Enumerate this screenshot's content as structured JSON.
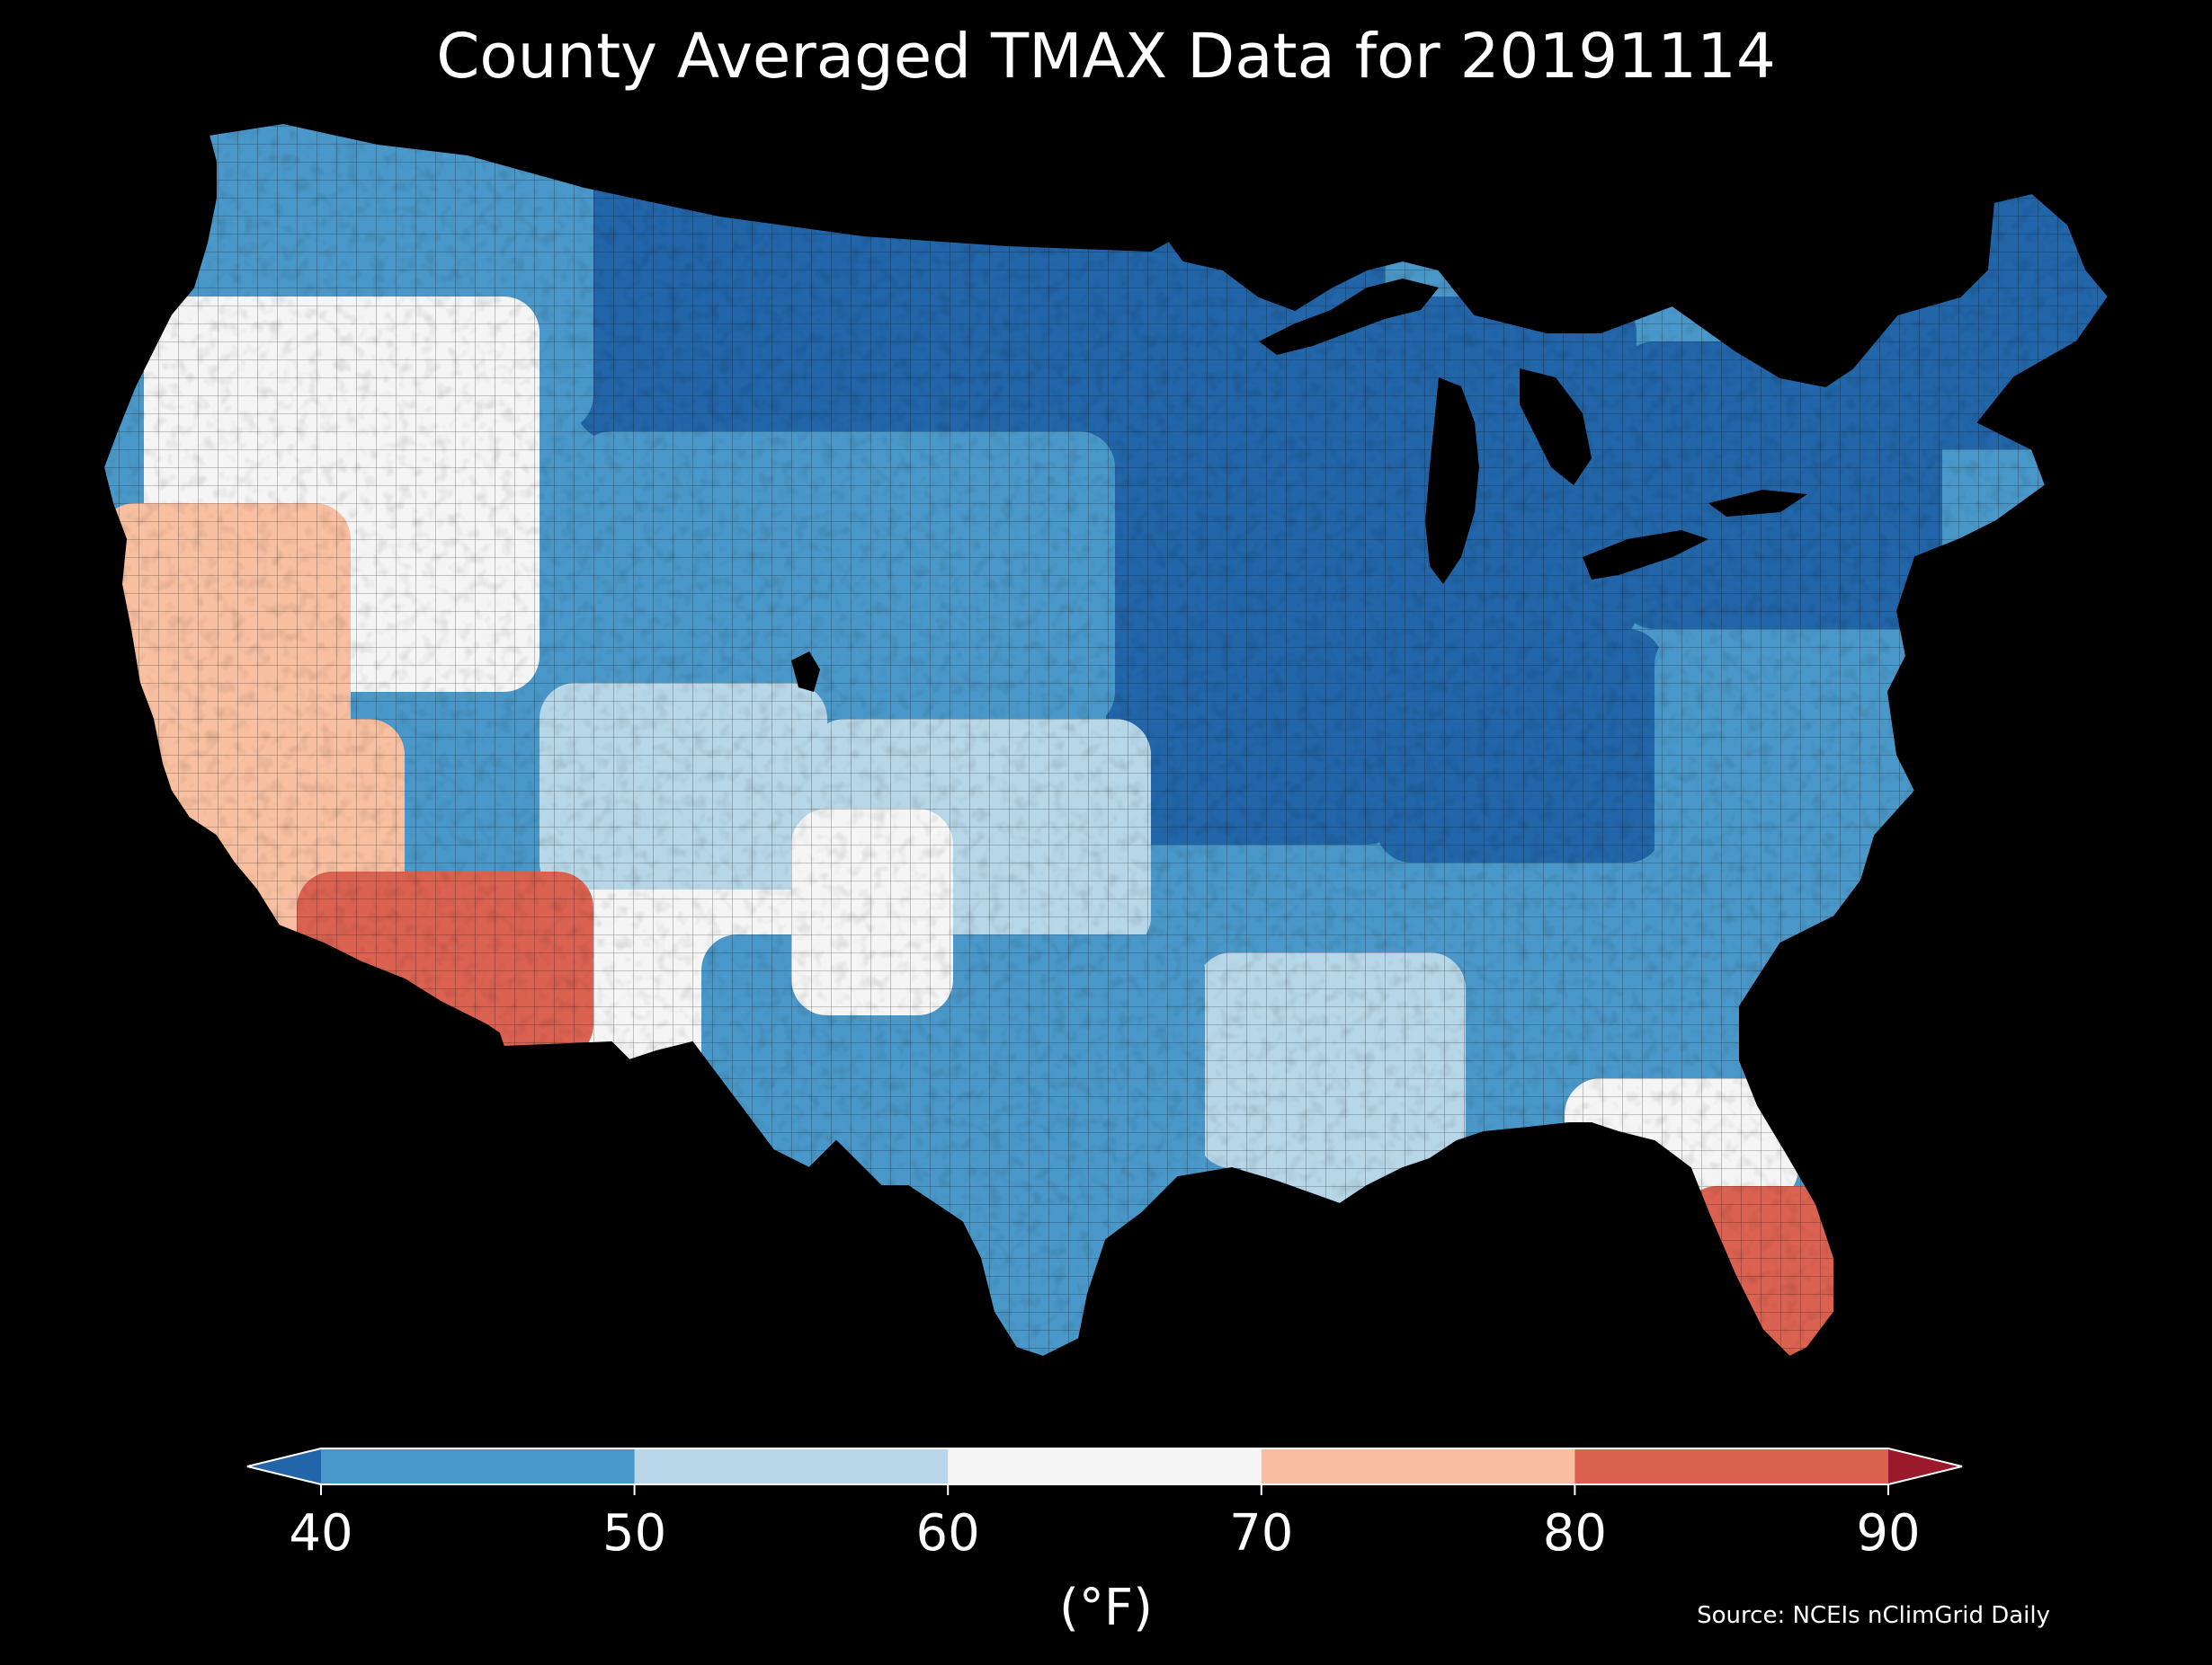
{
  "title": "County Averaged TMAX Data for 20191114",
  "map": {
    "region": "Contiguous United States",
    "unit": "county",
    "variable": "TMAX",
    "background_color": "#000000",
    "water_color": "#000000",
    "border_color": "#000000",
    "regional_values_degF": [
      {
        "region": "Maine / New England",
        "tmax": 28
      },
      {
        "region": "New York / Pennsylvania",
        "tmax": 32
      },
      {
        "region": "Michigan / Great Lakes",
        "tmax": 30
      },
      {
        "region": "Minnesota / Upper Midwest",
        "tmax": 28
      },
      {
        "region": "Ohio Valley / Indiana",
        "tmax": 34
      },
      {
        "region": "Iowa / Missouri",
        "tmax": 37
      },
      {
        "region": "Mid-Atlantic coast",
        "tmax": 44
      },
      {
        "region": "North Dakota / Montana plains",
        "tmax": 38
      },
      {
        "region": "Washington / Idaho interior",
        "tmax": 45
      },
      {
        "region": "Wyoming / Nebraska",
        "tmax": 48
      },
      {
        "region": "Kansas / Oklahoma",
        "tmax": 57
      },
      {
        "region": "Southeast / Carolinas",
        "tmax": 48
      },
      {
        "region": "Mississippi / Alabama",
        "tmax": 52
      },
      {
        "region": "Oregon / Nevada",
        "tmax": 62
      },
      {
        "region": "Utah / Colorado west",
        "tmax": 58
      },
      {
        "region": "New Mexico",
        "tmax": 64
      },
      {
        "region": "Texas",
        "tmax": 47
      },
      {
        "region": "Texas panhandle",
        "tmax": 69
      },
      {
        "region": "Gulf Coast Louisiana",
        "tmax": 57
      },
      {
        "region": "North Florida",
        "tmax": 68
      },
      {
        "region": "Central California",
        "tmax": 72
      },
      {
        "region": "Southern California",
        "tmax": 76
      },
      {
        "region": "Arizona",
        "tmax": 81
      },
      {
        "region": "South Florida",
        "tmax": 80
      }
    ]
  },
  "colorbar": {
    "ticks": [
      "40",
      "50",
      "60",
      "70",
      "80",
      "90"
    ],
    "min": 40,
    "max": 90,
    "step": 10,
    "extend": "both",
    "segment_colors": [
      "#4a98c9",
      "#b7d7e8",
      "#f5f5f5",
      "#f8bfa1",
      "#db6251"
    ],
    "under_color": "#2265a8",
    "over_color": "#9a1a2b",
    "label": "(°F)"
  },
  "source": "Source: NCEIs nClimGrid Daily"
}
